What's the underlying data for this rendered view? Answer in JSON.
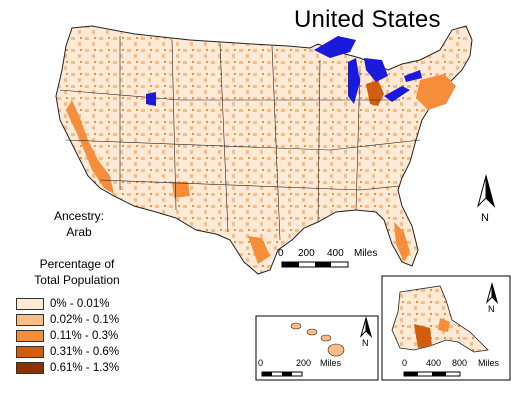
{
  "title": "United States",
  "subtitle_line1": "Ancestry:",
  "subtitle_line2": "Arab",
  "legend": {
    "title_line1": "Percentage of",
    "title_line2": "Total Population",
    "items": [
      {
        "label": "0% - 0.01%",
        "color": "#fdebd7"
      },
      {
        "label": "0.02% - 0.1%",
        "color": "#fdbb85"
      },
      {
        "label": "0.11% - 0.3%",
        "color": "#f68d3b"
      },
      {
        "label": "0.31% - 0.6%",
        "color": "#d35d0e"
      },
      {
        "label": "0.61% - 1.3%",
        "color": "#8a3206"
      }
    ]
  },
  "scales": {
    "main": {
      "labels": [
        "0",
        "200",
        "400",
        "Miles"
      ]
    },
    "hawaii": {
      "labels": [
        "0",
        "200",
        "Miles"
      ]
    },
    "alaska": {
      "labels": [
        "0",
        "400",
        "800",
        "Miles"
      ]
    }
  },
  "north_label": "N",
  "colors": {
    "water": "#1a1adb",
    "border": "#222222"
  }
}
